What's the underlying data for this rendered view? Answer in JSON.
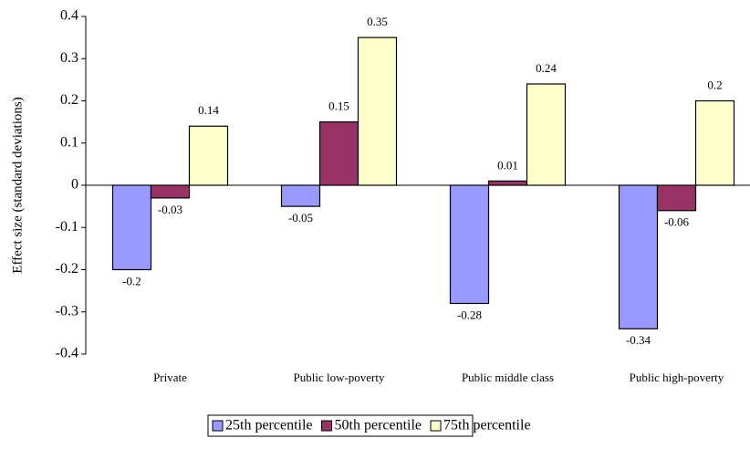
{
  "chart_data": {
    "type": "bar",
    "y_label": "Effect size (standard deviations)",
    "categories": [
      "Private",
      "Public low-poverty",
      "Public middle class",
      "Public high-poverty"
    ],
    "series": [
      {
        "name": "25th percentile",
        "color": "#9999ff",
        "values": [
          -0.2,
          -0.05,
          -0.28,
          -0.34
        ]
      },
      {
        "name": "50th percentile",
        "color": "#993366",
        "values": [
          -0.03,
          0.15,
          0.01,
          -0.06
        ]
      },
      {
        "name": "75th percentile",
        "color": "#ffffcc",
        "values": [
          0.14,
          0.35,
          0.24,
          0.2
        ]
      }
    ],
    "ylim": [
      -0.4,
      0.4
    ],
    "yticks": [
      -0.4,
      -0.3,
      -0.2,
      -0.1,
      0,
      0.1,
      0.2,
      0.3,
      0.4
    ],
    "legend": "bottom"
  }
}
